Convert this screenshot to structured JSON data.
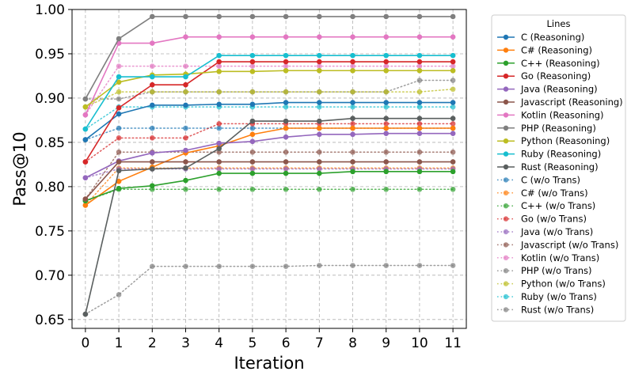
{
  "chart_data": {
    "type": "line",
    "xlabel": "Iteration",
    "ylabel": "Pass@10",
    "x": [
      0,
      1,
      2,
      3,
      4,
      5,
      6,
      7,
      8,
      9,
      10,
      11
    ],
    "xlim": [
      -0.4,
      11.4
    ],
    "ylim": [
      0.64,
      1.0
    ],
    "yticks": [
      "0.65",
      "0.70",
      "0.75",
      "0.80",
      "0.85",
      "0.90",
      "0.95",
      "1.00"
    ],
    "xticks": [
      "0",
      "1",
      "2",
      "3",
      "4",
      "5",
      "6",
      "7",
      "8",
      "9",
      "10",
      "11"
    ],
    "grid": true,
    "legend_title": "Lines",
    "legend_position": "outside-right",
    "series": [
      {
        "name": "C (Reasoning)",
        "style": "solid",
        "color": "#1f77b4",
        "values": [
          0.853,
          0.882,
          0.892,
          0.892,
          0.893,
          0.893,
          0.895,
          0.895,
          0.895,
          0.895,
          0.895,
          0.895
        ]
      },
      {
        "name": "C# (Reasoning)",
        "style": "solid",
        "color": "#ff7f0e",
        "values": [
          0.779,
          0.806,
          0.822,
          0.838,
          0.846,
          0.859,
          0.866,
          0.866,
          0.866,
          0.866,
          0.866,
          0.866
        ]
      },
      {
        "name": "C++ (Reasoning)",
        "style": "solid",
        "color": "#2ca02c",
        "values": [
          0.784,
          0.798,
          0.801,
          0.807,
          0.815,
          0.815,
          0.815,
          0.815,
          0.817,
          0.817,
          0.817,
          0.817
        ]
      },
      {
        "name": "Go (Reasoning)",
        "style": "solid",
        "color": "#d62728",
        "values": [
          0.828,
          0.889,
          0.915,
          0.915,
          0.941,
          0.941,
          0.941,
          0.941,
          0.941,
          0.941,
          0.941,
          0.941
        ]
      },
      {
        "name": "Java (Reasoning)",
        "style": "solid",
        "color": "#9467bd",
        "values": [
          0.81,
          0.829,
          0.838,
          0.841,
          0.849,
          0.851,
          0.856,
          0.859,
          0.859,
          0.86,
          0.86,
          0.86
        ]
      },
      {
        "name": "Javascript (Reasoning)",
        "style": "solid",
        "color": "#8c564b",
        "values": [
          0.786,
          0.828,
          0.828,
          0.828,
          0.828,
          0.828,
          0.828,
          0.828,
          0.828,
          0.828,
          0.828,
          0.828
        ]
      },
      {
        "name": "Kotlin (Reasoning)",
        "style": "solid",
        "color": "#e377c2",
        "values": [
          0.881,
          0.962,
          0.962,
          0.969,
          0.969,
          0.969,
          0.969,
          0.969,
          0.969,
          0.969,
          0.969,
          0.969
        ]
      },
      {
        "name": "PHP (Reasoning)",
        "style": "solid",
        "color": "#7f7f7f",
        "values": [
          0.899,
          0.967,
          0.992,
          0.992,
          0.992,
          0.992,
          0.992,
          0.992,
          0.992,
          0.992,
          0.992,
          0.992
        ]
      },
      {
        "name": "Python (Reasoning)",
        "style": "solid",
        "color": "#bcbd22",
        "values": [
          0.89,
          0.918,
          0.926,
          0.927,
          0.93,
          0.93,
          0.931,
          0.931,
          0.931,
          0.931,
          0.931,
          0.931
        ]
      },
      {
        "name": "Ruby (Reasoning)",
        "style": "solid",
        "color": "#17becf",
        "values": [
          0.865,
          0.924,
          0.924,
          0.924,
          0.948,
          0.948,
          0.948,
          0.948,
          0.948,
          0.948,
          0.948,
          0.948
        ]
      },
      {
        "name": "Rust (Reasoning)",
        "style": "solid",
        "color": "#5a5f5f",
        "values": [
          0.656,
          0.818,
          0.82,
          0.821,
          0.843,
          0.874,
          0.874,
          0.874,
          0.877,
          0.877,
          0.877,
          0.877
        ]
      },
      {
        "name": "C (w/o Trans)",
        "style": "dotted",
        "color": "#1f77b4",
        "values": [
          0.853,
          0.866,
          0.866,
          0.866,
          0.866,
          0.866,
          0.866,
          0.866,
          0.866,
          0.866,
          0.866,
          0.866
        ]
      },
      {
        "name": "C# (w/o Trans)",
        "style": "dotted",
        "color": "#ff7f0e",
        "values": [
          0.779,
          0.821,
          0.821,
          0.821,
          0.821,
          0.821,
          0.821,
          0.821,
          0.821,
          0.821,
          0.821,
          0.821
        ]
      },
      {
        "name": "C++ (w/o Trans)",
        "style": "dotted",
        "color": "#2ca02c",
        "values": [
          0.784,
          0.797,
          0.797,
          0.797,
          0.797,
          0.797,
          0.797,
          0.797,
          0.797,
          0.797,
          0.797,
          0.797
        ]
      },
      {
        "name": "Go (w/o Trans)",
        "style": "dotted",
        "color": "#d62728",
        "values": [
          0.828,
          0.855,
          0.855,
          0.855,
          0.871,
          0.871,
          0.871,
          0.871,
          0.871,
          0.871,
          0.871,
          0.871
        ]
      },
      {
        "name": "Java (w/o Trans)",
        "style": "dotted",
        "color": "#9467bd",
        "values": [
          0.81,
          0.82,
          0.82,
          0.82,
          0.82,
          0.82,
          0.82,
          0.82,
          0.82,
          0.82,
          0.82,
          0.82
        ]
      },
      {
        "name": "Javascript (w/o Trans)",
        "style": "dotted",
        "color": "#8c564b",
        "values": [
          0.786,
          0.839,
          0.839,
          0.839,
          0.839,
          0.839,
          0.839,
          0.839,
          0.839,
          0.839,
          0.839,
          0.839
        ]
      },
      {
        "name": "Kotlin (w/o Trans)",
        "style": "dotted",
        "color": "#e377c2",
        "values": [
          0.881,
          0.936,
          0.936,
          0.936,
          0.936,
          0.936,
          0.936,
          0.936,
          0.936,
          0.936,
          0.936,
          0.936
        ]
      },
      {
        "name": "PHP (w/o Trans)",
        "style": "dotted",
        "color": "#7f7f7f",
        "values": [
          0.899,
          0.899,
          0.907,
          0.907,
          0.907,
          0.907,
          0.907,
          0.907,
          0.907,
          0.907,
          0.92,
          0.92
        ]
      },
      {
        "name": "Python (w/o Trans)",
        "style": "dotted",
        "color": "#bcbd22",
        "values": [
          0.89,
          0.907,
          0.907,
          0.907,
          0.907,
          0.907,
          0.907,
          0.907,
          0.907,
          0.907,
          0.907,
          0.91
        ]
      },
      {
        "name": "Ruby (w/o Trans)",
        "style": "dotted",
        "color": "#17becf",
        "values": [
          0.865,
          0.89,
          0.89,
          0.89,
          0.89,
          0.89,
          0.89,
          0.89,
          0.89,
          0.89,
          0.89,
          0.89
        ]
      },
      {
        "name": "Rust (w/o Trans)",
        "style": "dotted",
        "color": "#7f7f7f",
        "values": [
          0.656,
          0.678,
          0.71,
          0.71,
          0.71,
          0.71,
          0.71,
          0.711,
          0.711,
          0.711,
          0.711,
          0.711
        ]
      }
    ]
  }
}
